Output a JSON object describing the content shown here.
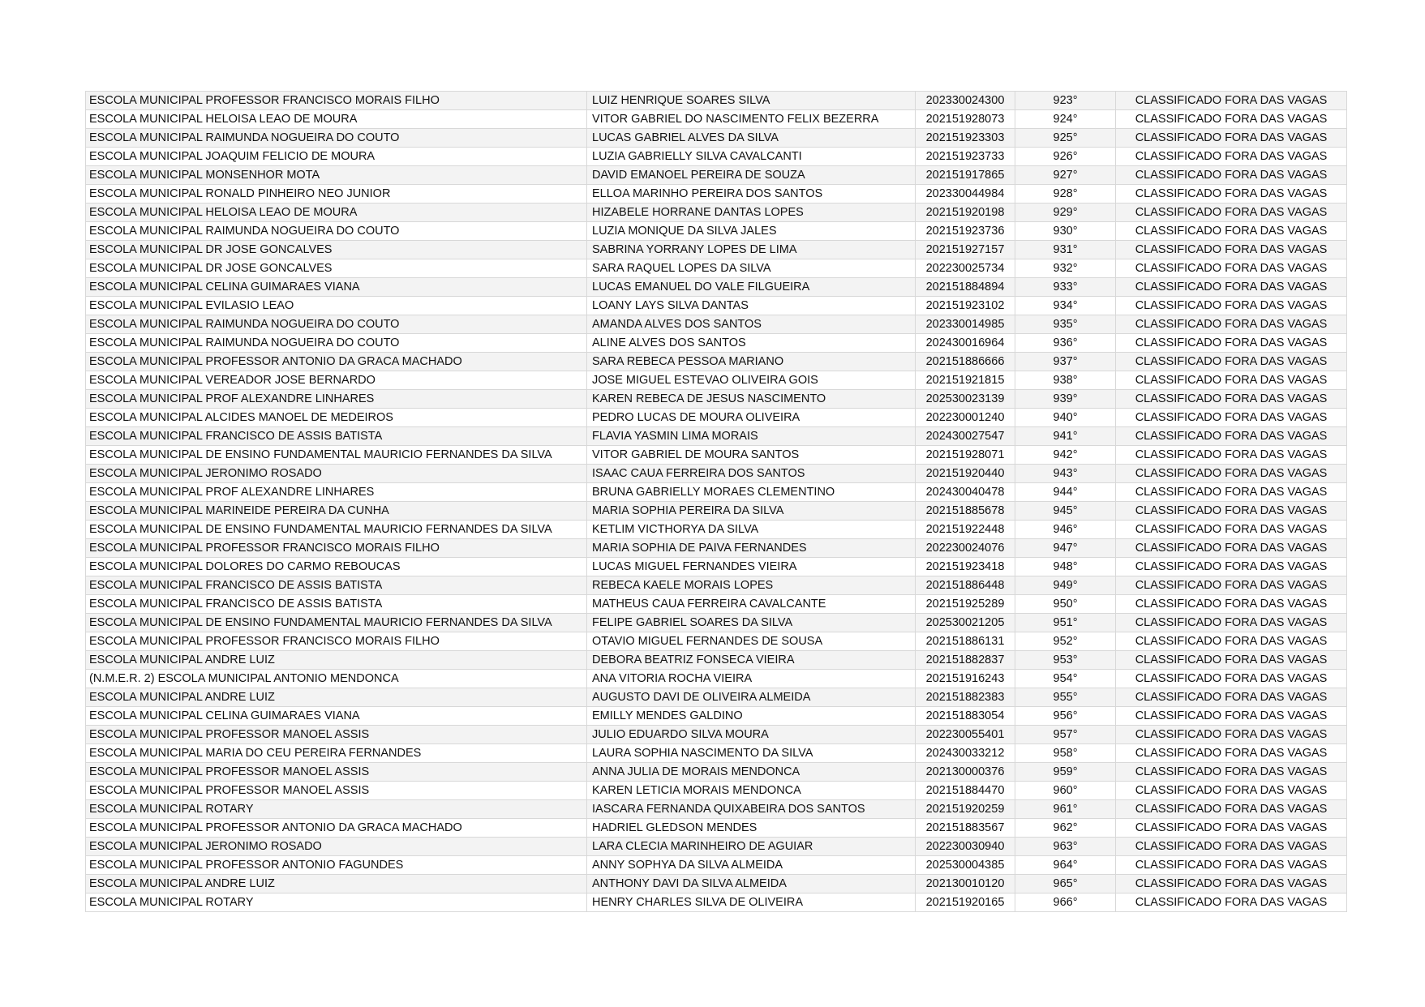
{
  "status": "CLASSIFICADO FORA DAS VAGAS",
  "rows": [
    [
      "ESCOLA MUNICIPAL PROFESSOR FRANCISCO MORAIS FILHO",
      "LUIZ HENRIQUE SOARES SILVA",
      "202330024300",
      "923°"
    ],
    [
      "ESCOLA MUNICIPAL HELOISA LEAO DE MOURA",
      "VITOR GABRIEL DO NASCIMENTO FELIX BEZERRA",
      "202151928073",
      "924°"
    ],
    [
      "ESCOLA MUNICIPAL RAIMUNDA NOGUEIRA DO COUTO",
      "LUCAS GABRIEL ALVES DA SILVA",
      "202151923303",
      "925°"
    ],
    [
      "ESCOLA MUNICIPAL JOAQUIM FELICIO DE MOURA",
      "LUZIA GABRIELLY SILVA CAVALCANTI",
      "202151923733",
      "926°"
    ],
    [
      "ESCOLA MUNICIPAL MONSENHOR MOTA",
      "DAVID EMANOEL PEREIRA DE SOUZA",
      "202151917865",
      "927°"
    ],
    [
      "ESCOLA MUNICIPAL RONALD PINHEIRO NEO JUNIOR",
      "ELLOA MARINHO PEREIRA DOS SANTOS",
      "202330044984",
      "928°"
    ],
    [
      "ESCOLA MUNICIPAL HELOISA LEAO DE MOURA",
      "HIZABELE HORRANE DANTAS LOPES",
      "202151920198",
      "929°"
    ],
    [
      "ESCOLA MUNICIPAL RAIMUNDA NOGUEIRA DO COUTO",
      "LUZIA MONIQUE DA SILVA JALES",
      "202151923736",
      "930°"
    ],
    [
      "ESCOLA MUNICIPAL DR JOSE GONCALVES",
      "SABRINA YORRANY LOPES DE LIMA",
      "202151927157",
      "931°"
    ],
    [
      "ESCOLA MUNICIPAL DR JOSE GONCALVES",
      "SARA RAQUEL LOPES DA SILVA",
      "202230025734",
      "932°"
    ],
    [
      "ESCOLA MUNICIPAL CELINA GUIMARAES VIANA",
      "LUCAS EMANUEL DO VALE FILGUEIRA",
      "202151884894",
      "933°"
    ],
    [
      "ESCOLA MUNICIPAL EVILASIO LEAO",
      "LOANY LAYS SILVA DANTAS",
      "202151923102",
      "934°"
    ],
    [
      "ESCOLA MUNICIPAL RAIMUNDA NOGUEIRA DO COUTO",
      "AMANDA ALVES DOS SANTOS",
      "202330014985",
      "935°"
    ],
    [
      "ESCOLA MUNICIPAL RAIMUNDA NOGUEIRA DO COUTO",
      "ALINE ALVES DOS SANTOS",
      "202430016964",
      "936°"
    ],
    [
      "ESCOLA MUNICIPAL PROFESSOR ANTONIO DA GRACA MACHADO",
      "SARA REBECA PESSOA MARIANO",
      "202151886666",
      "937°"
    ],
    [
      "ESCOLA MUNICIPAL VEREADOR JOSE BERNARDO",
      "JOSE MIGUEL ESTEVAO OLIVEIRA GOIS",
      "202151921815",
      "938°"
    ],
    [
      "ESCOLA MUNICIPAL PROF ALEXANDRE LINHARES",
      "KAREN REBECA DE JESUS NASCIMENTO",
      "202530023139",
      "939°"
    ],
    [
      "ESCOLA MUNICIPAL ALCIDES MANOEL DE MEDEIROS",
      "PEDRO LUCAS DE MOURA OLIVEIRA",
      "202230001240",
      "940°"
    ],
    [
      "ESCOLA MUNICIPAL FRANCISCO DE ASSIS BATISTA",
      "FLAVIA YASMIN LIMA MORAIS",
      "202430027547",
      "941°"
    ],
    [
      "ESCOLA MUNICIPAL DE ENSINO FUNDAMENTAL MAURICIO FERNANDES DA SILVA",
      "VITOR GABRIEL DE MOURA SANTOS",
      "202151928071",
      "942°"
    ],
    [
      "ESCOLA MUNICIPAL JERONIMO ROSADO",
      "ISAAC CAUA FERREIRA DOS SANTOS",
      "202151920440",
      "943°"
    ],
    [
      "ESCOLA MUNICIPAL PROF ALEXANDRE LINHARES",
      "BRUNA GABRIELLY MORAES CLEMENTINO",
      "202430040478",
      "944°"
    ],
    [
      "ESCOLA MUNICIPAL MARINEIDE PEREIRA DA CUNHA",
      "MARIA SOPHIA PEREIRA DA SILVA",
      "202151885678",
      "945°"
    ],
    [
      "ESCOLA MUNICIPAL DE ENSINO FUNDAMENTAL MAURICIO FERNANDES DA SILVA",
      "KETLIM VICTHORYA DA SILVA",
      "202151922448",
      "946°"
    ],
    [
      "ESCOLA MUNICIPAL PROFESSOR FRANCISCO MORAIS FILHO",
      "MARIA SOPHIA DE PAIVA FERNANDES",
      "202230024076",
      "947°"
    ],
    [
      "ESCOLA MUNICIPAL DOLORES DO CARMO REBOUCAS",
      "LUCAS MIGUEL FERNANDES VIEIRA",
      "202151923418",
      "948°"
    ],
    [
      "ESCOLA MUNICIPAL FRANCISCO DE ASSIS BATISTA",
      "REBECA KAELE MORAIS LOPES",
      "202151886448",
      "949°"
    ],
    [
      "ESCOLA MUNICIPAL FRANCISCO DE ASSIS BATISTA",
      "MATHEUS CAUA FERREIRA CAVALCANTE",
      "202151925289",
      "950°"
    ],
    [
      "ESCOLA MUNICIPAL DE ENSINO FUNDAMENTAL MAURICIO FERNANDES DA SILVA",
      "FELIPE GABRIEL SOARES DA SILVA",
      "202530021205",
      "951°"
    ],
    [
      "ESCOLA MUNICIPAL PROFESSOR FRANCISCO MORAIS FILHO",
      "OTAVIO MIGUEL FERNANDES DE SOUSA",
      "202151886131",
      "952°"
    ],
    [
      "ESCOLA MUNICIPAL ANDRE LUIZ",
      "DEBORA BEATRIZ FONSECA VIEIRA",
      "202151882837",
      "953°"
    ],
    [
      "(N.M.E.R. 2) ESCOLA MUNICIPAL ANTONIO MENDONCA",
      "ANA VITORIA ROCHA VIEIRA",
      "202151916243",
      "954°"
    ],
    [
      "ESCOLA MUNICIPAL ANDRE LUIZ",
      "AUGUSTO DAVI DE OLIVEIRA ALMEIDA",
      "202151882383",
      "955°"
    ],
    [
      "ESCOLA MUNICIPAL CELINA GUIMARAES VIANA",
      "EMILLY MENDES GALDINO",
      "202151883054",
      "956°"
    ],
    [
      "ESCOLA MUNICIPAL PROFESSOR MANOEL ASSIS",
      "JULIO EDUARDO SILVA MOURA",
      "202230055401",
      "957°"
    ],
    [
      "ESCOLA MUNICIPAL MARIA DO CEU PEREIRA FERNANDES",
      "LAURA SOPHIA NASCIMENTO DA SILVA",
      "202430033212",
      "958°"
    ],
    [
      "ESCOLA MUNICIPAL PROFESSOR MANOEL ASSIS",
      "ANNA JULIA DE MORAIS MENDONCA",
      "202130000376",
      "959°"
    ],
    [
      "ESCOLA MUNICIPAL PROFESSOR MANOEL ASSIS",
      "KAREN LETICIA MORAIS MENDONCA",
      "202151884470",
      "960°"
    ],
    [
      "ESCOLA MUNICIPAL ROTARY",
      "IASCARA FERNANDA QUIXABEIRA DOS SANTOS",
      "202151920259",
      "961°"
    ],
    [
      "ESCOLA MUNICIPAL PROFESSOR ANTONIO DA GRACA MACHADO",
      "HADRIEL GLEDSON MENDES",
      "202151883567",
      "962°"
    ],
    [
      "ESCOLA MUNICIPAL JERONIMO ROSADO",
      "LARA CLECIA MARINHEIRO DE AGUIAR",
      "202230030940",
      "963°"
    ],
    [
      "ESCOLA MUNICIPAL PROFESSOR ANTONIO FAGUNDES",
      "ANNY SOPHYA DA SILVA ALMEIDA",
      "202530004385",
      "964°"
    ],
    [
      "ESCOLA MUNICIPAL ANDRE LUIZ",
      "ANTHONY DAVI DA SILVA ALMEIDA",
      "202130010120",
      "965°"
    ],
    [
      "ESCOLA MUNICIPAL ROTARY",
      "HENRY CHARLES SILVA DE OLIVEIRA",
      "202151920165",
      "966°"
    ]
  ]
}
